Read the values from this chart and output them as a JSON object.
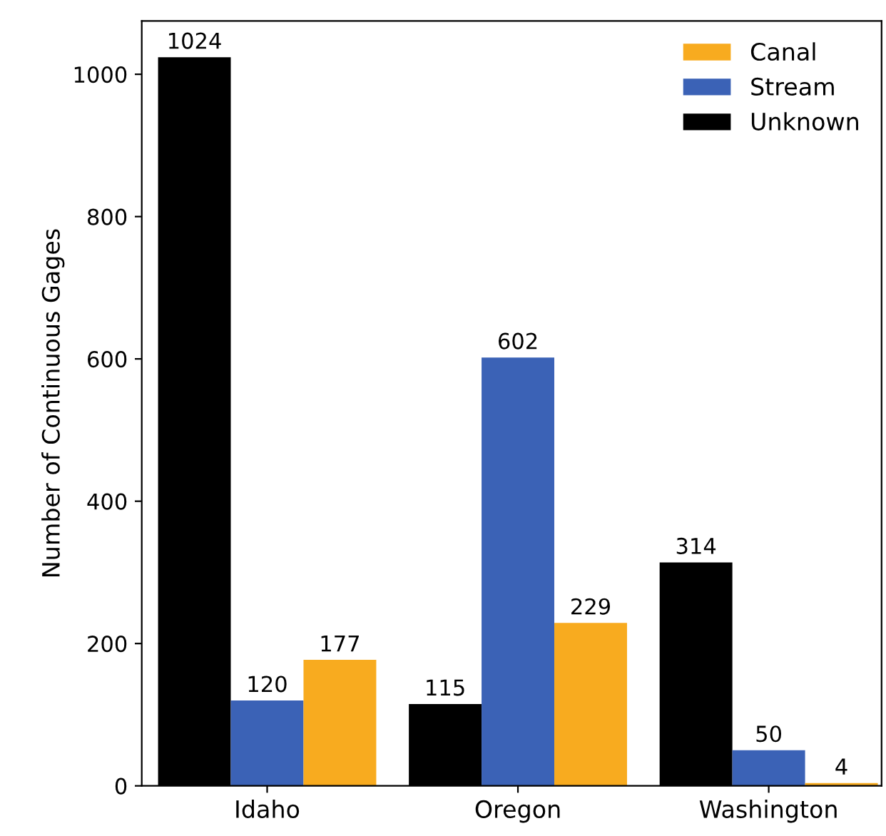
{
  "chart_data": {
    "type": "bar",
    "ylabel": "Number of Continuous Gages",
    "categories": [
      "Idaho",
      "Oregon",
      "Washington"
    ],
    "series": [
      {
        "name": "Unknown",
        "color": "#000000",
        "values": [
          1024,
          115,
          314
        ]
      },
      {
        "name": "Stream",
        "color": "#3b62b6",
        "values": [
          120,
          602,
          50
        ]
      },
      {
        "name": "Canal",
        "color": "#f8ab1f",
        "values": [
          177,
          229,
          4
        ]
      }
    ],
    "ylim": [
      0,
      1075
    ],
    "yticks": [
      0,
      200,
      400,
      600,
      800,
      1000
    ],
    "data_labels": true,
    "legend": "top right",
    "grid": false
  }
}
